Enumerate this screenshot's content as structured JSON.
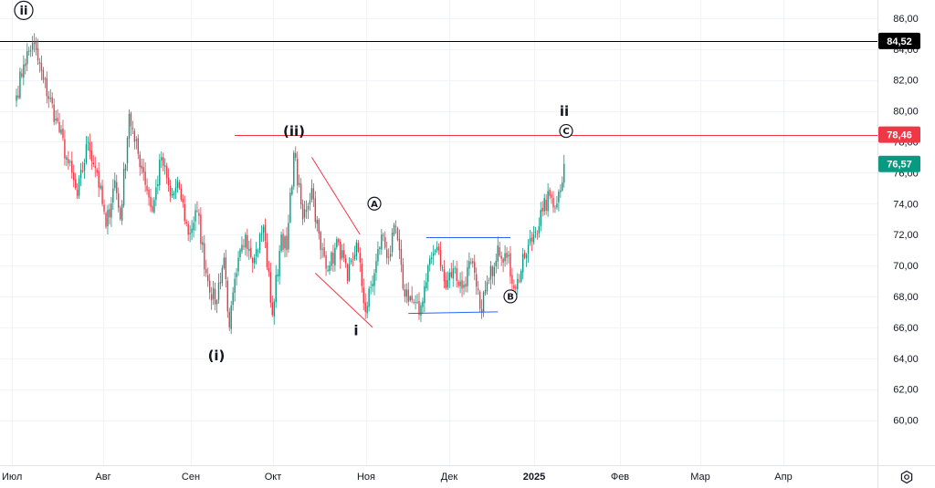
{
  "chart_data": {
    "type": "candlestick",
    "x_labels": [
      "Июл",
      "Авг",
      "Сен",
      "Окт",
      "Ноя",
      "Дек",
      "2025",
      "Фев",
      "Мар",
      "Апр"
    ],
    "y_ticks": [
      "60,00",
      "62,00",
      "64,00",
      "66,00",
      "68,00",
      "70,00",
      "72,00",
      "74,00",
      "76,00",
      "78,00",
      "80,00",
      "82,00",
      "84,00",
      "86,00",
      "88,00"
    ],
    "ylim": [
      58.8,
      88.8
    ],
    "grid": true,
    "price_badges": [
      {
        "label": "84,52",
        "value": 84.52,
        "color": "#000000",
        "text_color": "#ffffff"
      },
      {
        "label": "78,46",
        "value": 78.46,
        "color": "#f23645",
        "text_color": "#ffffff"
      },
      {
        "label": "76,57",
        "value": 76.57,
        "color": "#089981",
        "text_color": "#ffffff"
      }
    ],
    "horizontal_lines": [
      {
        "name": "level-84-52",
        "value": 84.52,
        "color": "#000000",
        "x_from": "Июл"
      },
      {
        "name": "level-78-46",
        "value": 78.46,
        "color": "#f23645",
        "x_from": "Сен"
      }
    ],
    "wave_labels": [
      {
        "text": "ii",
        "circled": true,
        "value": 86.5,
        "x": "Июл"
      },
      {
        "text": "(i)",
        "circled": false,
        "value": 64.2,
        "x": "Сен"
      },
      {
        "text": "(ii)",
        "circled": false,
        "value": 78.7,
        "x": "Окт"
      },
      {
        "text": "i",
        "circled": false,
        "value": 65.8,
        "x": "Ноя"
      },
      {
        "text": "A",
        "circled": true,
        "value": 74.0,
        "x": "Ноя"
      },
      {
        "text": "B",
        "circled": true,
        "value": 68.0,
        "x": "Дек"
      },
      {
        "text": "ii",
        "circled": false,
        "value": 80.0,
        "x": "2025"
      },
      {
        "text": "C",
        "circled": true,
        "value": 78.7,
        "x": "2025"
      }
    ],
    "series": [
      {
        "name": "price",
        "anchors": [
          [
            0,
            81.0
          ],
          [
            4,
            83.0
          ],
          [
            9,
            84.4
          ],
          [
            15,
            82.0
          ],
          [
            22,
            79.5
          ],
          [
            28,
            77.0
          ],
          [
            34,
            74.5
          ],
          [
            40,
            78.0
          ],
          [
            45,
            76.0
          ],
          [
            50,
            72.5
          ],
          [
            55,
            75.5
          ],
          [
            58,
            73.0
          ],
          [
            63,
            79.8
          ],
          [
            66,
            78.0
          ],
          [
            71,
            76.0
          ],
          [
            76,
            73.5
          ],
          [
            81,
            77.0
          ],
          [
            86,
            74.5
          ],
          [
            91,
            75.0
          ],
          [
            96,
            72.0
          ],
          [
            101,
            73.5
          ],
          [
            106,
            69.5
          ],
          [
            111,
            67.5
          ],
          [
            116,
            70.5
          ],
          [
            119,
            66.0
          ],
          [
            123,
            69.5
          ],
          [
            128,
            72.0
          ],
          [
            133,
            70.5
          ],
          [
            138,
            72.5
          ],
          [
            143,
            66.8
          ],
          [
            148,
            72.0
          ],
          [
            151,
            71.0
          ],
          [
            155,
            77.3
          ],
          [
            160,
            73.0
          ],
          [
            165,
            75.0
          ],
          [
            170,
            71.0
          ],
          [
            175,
            70.0
          ],
          [
            180,
            71.5
          ],
          [
            185,
            69.0
          ],
          [
            190,
            71.5
          ],
          [
            195,
            67.0
          ],
          [
            200,
            69.5
          ],
          [
            204,
            72.0
          ],
          [
            208,
            70.5
          ],
          [
            212,
            72.5
          ],
          [
            216,
            68.5
          ],
          [
            220,
            68.0
          ],
          [
            225,
            66.8
          ],
          [
            230,
            70.0
          ],
          [
            235,
            71.2
          ],
          [
            239,
            69.0
          ],
          [
            244,
            69.8
          ],
          [
            249,
            68.5
          ],
          [
            254,
            70.2
          ],
          [
            259,
            67.2
          ],
          [
            264,
            69.0
          ],
          [
            269,
            71.3
          ],
          [
            274,
            70.5
          ],
          [
            279,
            68.5
          ],
          [
            284,
            70.5
          ],
          [
            289,
            72.0
          ],
          [
            294,
            73.5
          ],
          [
            298,
            74.5
          ],
          [
            302,
            74.0
          ],
          [
            306,
            76.57
          ]
        ]
      }
    ],
    "trend_lines": [
      {
        "name": "wedge-upper",
        "color": "#f23645",
        "from": [
          165,
          77.0
        ],
        "to": [
          192,
          72.0
        ]
      },
      {
        "name": "wedge-lower",
        "color": "#f23645",
        "from": [
          167,
          69.5
        ],
        "to": [
          199,
          66.0
        ]
      },
      {
        "name": "range-upper",
        "color": "#2962ff",
        "from": [
          229,
          71.8
        ],
        "to": [
          276,
          71.8
        ]
      },
      {
        "name": "range-lower",
        "color": "#2962ff",
        "from": [
          219,
          66.9
        ],
        "to": [
          269,
          67.0
        ]
      }
    ],
    "colors": {
      "up": "#089981",
      "down": "#f23645",
      "grid": "#f0f3fa",
      "axis": "#e0e3eb"
    }
  }
}
